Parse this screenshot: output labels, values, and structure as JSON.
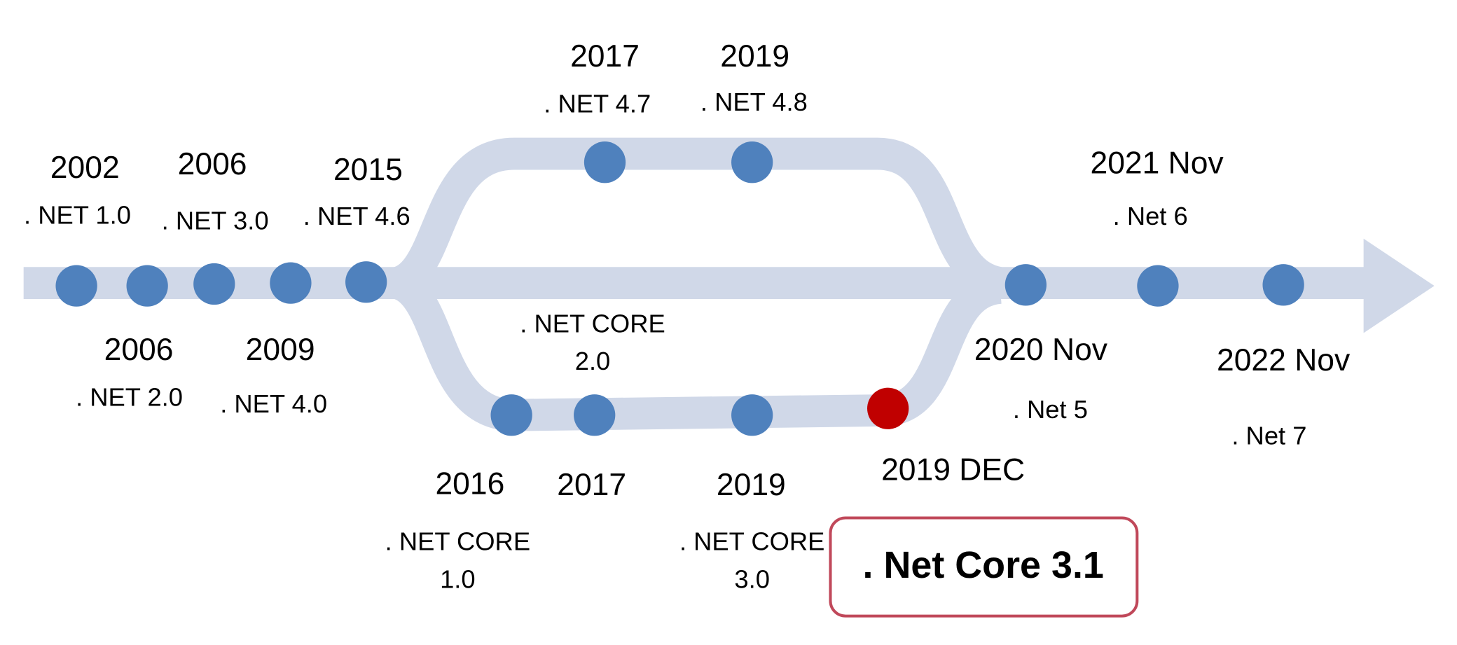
{
  "milestones": [
    {
      "year": "2002",
      "label": [
        ". NET 1.0"
      ]
    },
    {
      "year": "2006",
      "label": [
        ". NET 2.0"
      ]
    },
    {
      "year": "2006",
      "label": [
        ". NET 3.0"
      ]
    },
    {
      "year": "2009",
      "label": [
        ". NET 4.0"
      ]
    },
    {
      "year": "2015",
      "label": [
        ". NET 4.6"
      ]
    },
    {
      "year": "2017",
      "label": [
        ". NET 4.7"
      ]
    },
    {
      "year": "2019",
      "label": [
        ". NET 4.8"
      ]
    },
    {
      "year": "2016",
      "label": [
        ". NET CORE",
        "1.0"
      ]
    },
    {
      "year": "2017",
      "label": [
        ". NET CORE",
        "2.0"
      ]
    },
    {
      "year": "2019",
      "label": [
        ". NET CORE",
        "3.0"
      ]
    },
    {
      "year": "2019 DEC",
      "label": [
        ". Net Core 3.1"
      ]
    },
    {
      "year": "2020 Nov",
      "label": [
        ". Net 5"
      ]
    },
    {
      "year": "2021 Nov",
      "label": [
        ". Net 6"
      ]
    },
    {
      "year": "2022 Nov",
      "label": [
        ". Net 7"
      ]
    }
  ]
}
